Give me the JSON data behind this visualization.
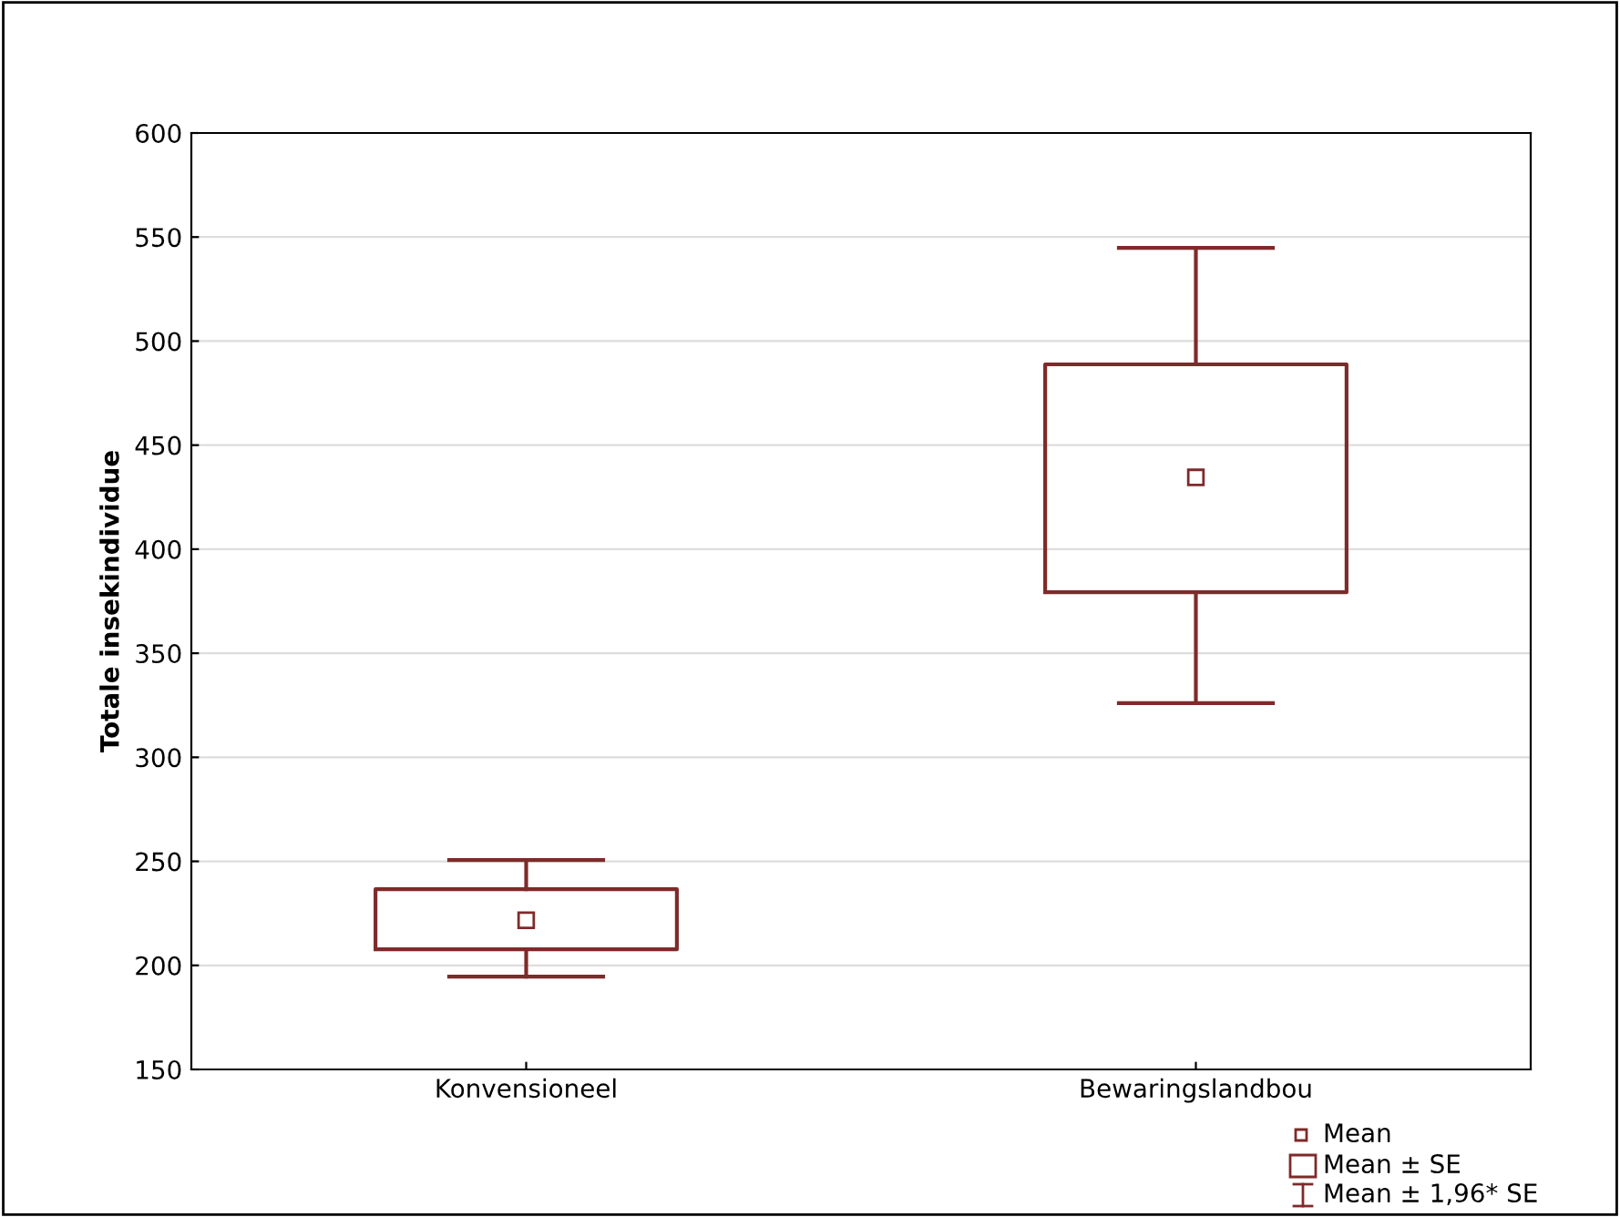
{
  "chart_data": {
    "type": "box",
    "ylabel": "Totale insekindividue",
    "categories": [
      "Konvensioneel",
      "Bewaringslandbou"
    ],
    "boxes": [
      {
        "low": 194.6,
        "q1": 207.7,
        "q3": 236.6,
        "high": 250.6,
        "mean": 221.7
      },
      {
        "low": 326,
        "q1": 379.3,
        "q3": 488.8,
        "high": 544.8,
        "mean": 434.5
      }
    ],
    "color": "#7f2a2a",
    "ylim": [
      150,
      600
    ],
    "yticks": [
      150,
      200,
      250,
      300,
      350,
      400,
      450,
      500,
      550,
      600
    ],
    "grid": "y",
    "marker": "square",
    "annotations": [
      "Mean",
      "Mean ± SE",
      "Mean ± 1,96* SE"
    ]
  }
}
